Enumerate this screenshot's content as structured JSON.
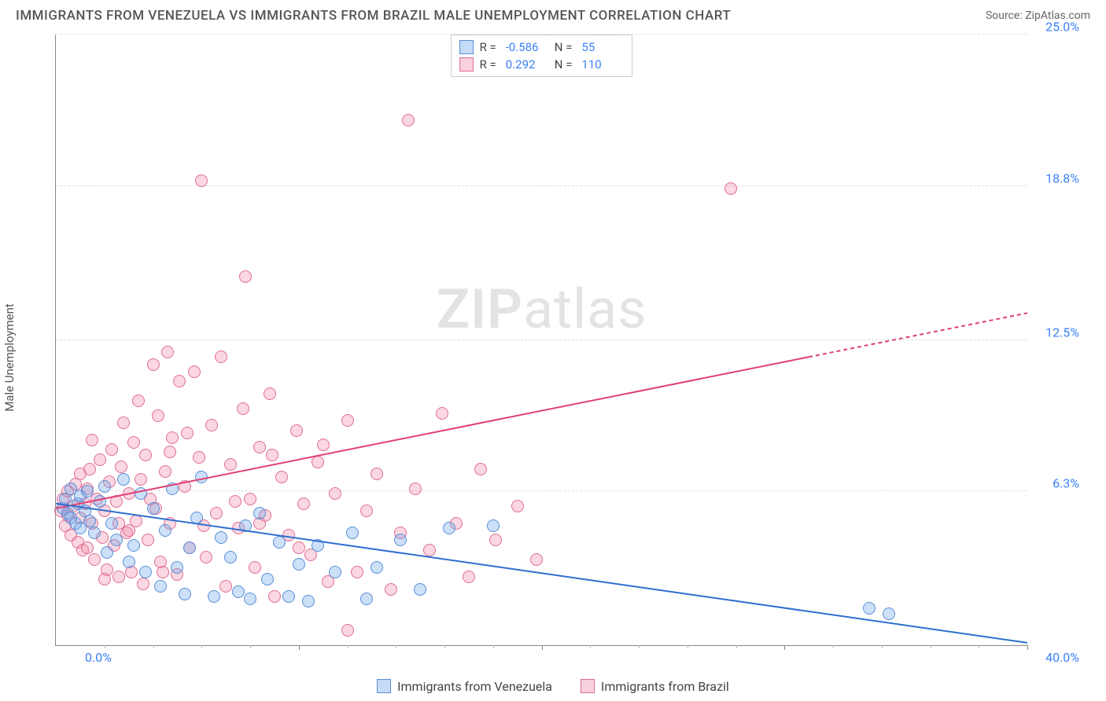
{
  "header": {
    "title": "IMMIGRANTS FROM VENEZUELA VS IMMIGRANTS FROM BRAZIL MALE UNEMPLOYMENT CORRELATION CHART",
    "source_label": "Source:",
    "source_name": "ZipAtlas.com"
  },
  "y_axis_label": "Male Unemployment",
  "chart": {
    "type": "scatter",
    "xlim": [
      0,
      40
    ],
    "ylim": [
      0,
      25
    ],
    "x_origin_label": "0.0%",
    "x_max_label": "40.0%",
    "y_ticks": [
      {
        "v": 6.3,
        "label": "6.3%"
      },
      {
        "v": 12.5,
        "label": "12.5%"
      },
      {
        "v": 18.8,
        "label": "18.8%"
      },
      {
        "v": 25.0,
        "label": "25.0%"
      }
    ],
    "x_major_tick_step": 10,
    "x_minor_tick_step": 2,
    "background_color": "#ffffff",
    "grid_color": "#dddddd",
    "marker_radius": 8,
    "colors": {
      "venezuela_fill": "rgba(110,165,235,0.35)",
      "venezuela_stroke": "#5a8fd6",
      "brazil_fill": "rgba(240,140,170,0.35)",
      "brazil_stroke": "#e06d94",
      "trend_venezuela": "#2f6fd0",
      "trend_brazil": "#e23f74",
      "tick_label": "#3b82f6"
    },
    "trend_lines": {
      "venezuela": {
        "x1": 0,
        "y1": 5.8,
        "x2": 40,
        "y2": 0.1,
        "dash_from_x": 40
      },
      "brazil": {
        "x1": 0,
        "y1": 5.6,
        "x2": 40,
        "y2": 13.6,
        "dash_from_x": 31
      }
    },
    "series": {
      "venezuela": {
        "label": "Immigrants from Venezuela",
        "R": "-0.586",
        "N": "55",
        "points": [
          [
            0.3,
            5.6
          ],
          [
            0.4,
            6.0
          ],
          [
            0.5,
            5.4
          ],
          [
            0.6,
            5.2
          ],
          [
            0.6,
            6.4
          ],
          [
            0.8,
            5.0
          ],
          [
            0.9,
            5.8
          ],
          [
            1.0,
            6.1
          ],
          [
            1.0,
            4.8
          ],
          [
            1.2,
            5.5
          ],
          [
            1.3,
            6.3
          ],
          [
            1.4,
            5.1
          ],
          [
            1.6,
            4.6
          ],
          [
            1.8,
            5.9
          ],
          [
            2.0,
            6.5
          ],
          [
            2.1,
            3.8
          ],
          [
            2.3,
            5.0
          ],
          [
            2.5,
            4.3
          ],
          [
            2.8,
            6.8
          ],
          [
            3.0,
            3.4
          ],
          [
            3.2,
            4.1
          ],
          [
            3.5,
            6.2
          ],
          [
            3.7,
            3.0
          ],
          [
            4.0,
            5.6
          ],
          [
            4.3,
            2.4
          ],
          [
            4.5,
            4.7
          ],
          [
            4.8,
            6.4
          ],
          [
            5.0,
            3.2
          ],
          [
            5.3,
            2.1
          ],
          [
            5.5,
            4.0
          ],
          [
            5.8,
            5.2
          ],
          [
            6.0,
            6.9
          ],
          [
            6.5,
            2.0
          ],
          [
            6.8,
            4.4
          ],
          [
            7.2,
            3.6
          ],
          [
            7.5,
            2.2
          ],
          [
            7.8,
            4.9
          ],
          [
            8.0,
            1.9
          ],
          [
            8.4,
            5.4
          ],
          [
            8.7,
            2.7
          ],
          [
            9.2,
            4.2
          ],
          [
            9.6,
            2.0
          ],
          [
            10.0,
            3.3
          ],
          [
            10.4,
            1.8
          ],
          [
            10.8,
            4.1
          ],
          [
            11.5,
            3.0
          ],
          [
            12.2,
            4.6
          ],
          [
            13.2,
            3.2
          ],
          [
            14.2,
            4.3
          ],
          [
            15.0,
            2.3
          ],
          [
            16.2,
            4.8
          ],
          [
            18.0,
            4.9
          ],
          [
            33.5,
            1.5
          ],
          [
            34.3,
            1.3
          ],
          [
            12.8,
            1.9
          ]
        ]
      },
      "brazil": {
        "label": "Immigrants from Brazil",
        "R": "0.292",
        "N": "110",
        "points": [
          [
            0.2,
            5.5
          ],
          [
            0.3,
            6.0
          ],
          [
            0.4,
            4.9
          ],
          [
            0.5,
            5.3
          ],
          [
            0.5,
            6.3
          ],
          [
            0.6,
            4.5
          ],
          [
            0.7,
            5.7
          ],
          [
            0.8,
            6.6
          ],
          [
            0.9,
            4.2
          ],
          [
            1.0,
            5.2
          ],
          [
            1.0,
            7.0
          ],
          [
            1.1,
            3.9
          ],
          [
            1.2,
            5.8
          ],
          [
            1.3,
            6.4
          ],
          [
            1.3,
            4.0
          ],
          [
            1.4,
            7.2
          ],
          [
            1.5,
            5.0
          ],
          [
            1.6,
            3.5
          ],
          [
            1.7,
            6.0
          ],
          [
            1.8,
            7.6
          ],
          [
            1.9,
            4.4
          ],
          [
            2.0,
            5.5
          ],
          [
            2.1,
            3.1
          ],
          [
            2.2,
            6.7
          ],
          [
            2.3,
            8.0
          ],
          [
            2.4,
            4.1
          ],
          [
            2.5,
            5.9
          ],
          [
            2.6,
            2.8
          ],
          [
            2.7,
            7.3
          ],
          [
            2.8,
            9.1
          ],
          [
            2.9,
            4.6
          ],
          [
            3.0,
            6.2
          ],
          [
            3.1,
            3.0
          ],
          [
            3.2,
            8.3
          ],
          [
            3.3,
            5.1
          ],
          [
            3.4,
            10.0
          ],
          [
            3.5,
            6.8
          ],
          [
            3.6,
            2.5
          ],
          [
            3.7,
            7.8
          ],
          [
            3.8,
            4.3
          ],
          [
            4.0,
            11.5
          ],
          [
            4.1,
            5.6
          ],
          [
            4.2,
            9.4
          ],
          [
            4.3,
            3.4
          ],
          [
            4.5,
            7.1
          ],
          [
            4.6,
            12.0
          ],
          [
            4.7,
            5.0
          ],
          [
            4.8,
            8.5
          ],
          [
            5.0,
            2.9
          ],
          [
            5.1,
            10.8
          ],
          [
            5.3,
            6.5
          ],
          [
            5.5,
            4.0
          ],
          [
            5.7,
            11.2
          ],
          [
            5.9,
            7.7
          ],
          [
            6.0,
            19.0
          ],
          [
            6.2,
            3.6
          ],
          [
            6.4,
            9.0
          ],
          [
            6.6,
            5.4
          ],
          [
            6.8,
            11.8
          ],
          [
            7.0,
            2.4
          ],
          [
            7.2,
            7.4
          ],
          [
            7.5,
            4.8
          ],
          [
            7.7,
            9.7
          ],
          [
            8.0,
            6.0
          ],
          [
            8.2,
            3.2
          ],
          [
            8.4,
            8.1
          ],
          [
            8.6,
            5.3
          ],
          [
            8.8,
            10.3
          ],
          [
            9.0,
            2.0
          ],
          [
            9.3,
            6.9
          ],
          [
            9.6,
            4.5
          ],
          [
            9.9,
            8.8
          ],
          [
            7.8,
            15.1
          ],
          [
            10.2,
            5.8
          ],
          [
            10.5,
            3.7
          ],
          [
            10.8,
            7.5
          ],
          [
            11.2,
            2.6
          ],
          [
            11.5,
            6.2
          ],
          [
            8.4,
            5.0
          ],
          [
            12.0,
            9.2
          ],
          [
            12.4,
            3.0
          ],
          [
            12.8,
            5.5
          ],
          [
            13.2,
            7.0
          ],
          [
            13.8,
            2.3
          ],
          [
            14.2,
            4.6
          ],
          [
            14.5,
            21.5
          ],
          [
            14.8,
            6.4
          ],
          [
            15.4,
            3.9
          ],
          [
            15.9,
            9.5
          ],
          [
            16.5,
            5.0
          ],
          [
            17.0,
            2.8
          ],
          [
            17.5,
            7.2
          ],
          [
            18.1,
            4.3
          ],
          [
            19.0,
            5.7
          ],
          [
            19.8,
            3.5
          ],
          [
            12.0,
            0.6
          ],
          [
            4.7,
            7.9
          ],
          [
            5.4,
            8.7
          ],
          [
            3.9,
            6.0
          ],
          [
            2.0,
            2.7
          ],
          [
            1.5,
            8.4
          ],
          [
            6.1,
            4.9
          ],
          [
            7.4,
            5.9
          ],
          [
            8.9,
            7.8
          ],
          [
            10.0,
            4.0
          ],
          [
            11.0,
            8.2
          ],
          [
            3.0,
            4.7
          ],
          [
            27.8,
            18.7
          ],
          [
            2.6,
            5.0
          ],
          [
            4.4,
            3.0
          ]
        ]
      }
    }
  },
  "watermark": {
    "part1": "ZIP",
    "part2": "atlas"
  },
  "legend_labels": {
    "R": "R =",
    "N": "N ="
  }
}
